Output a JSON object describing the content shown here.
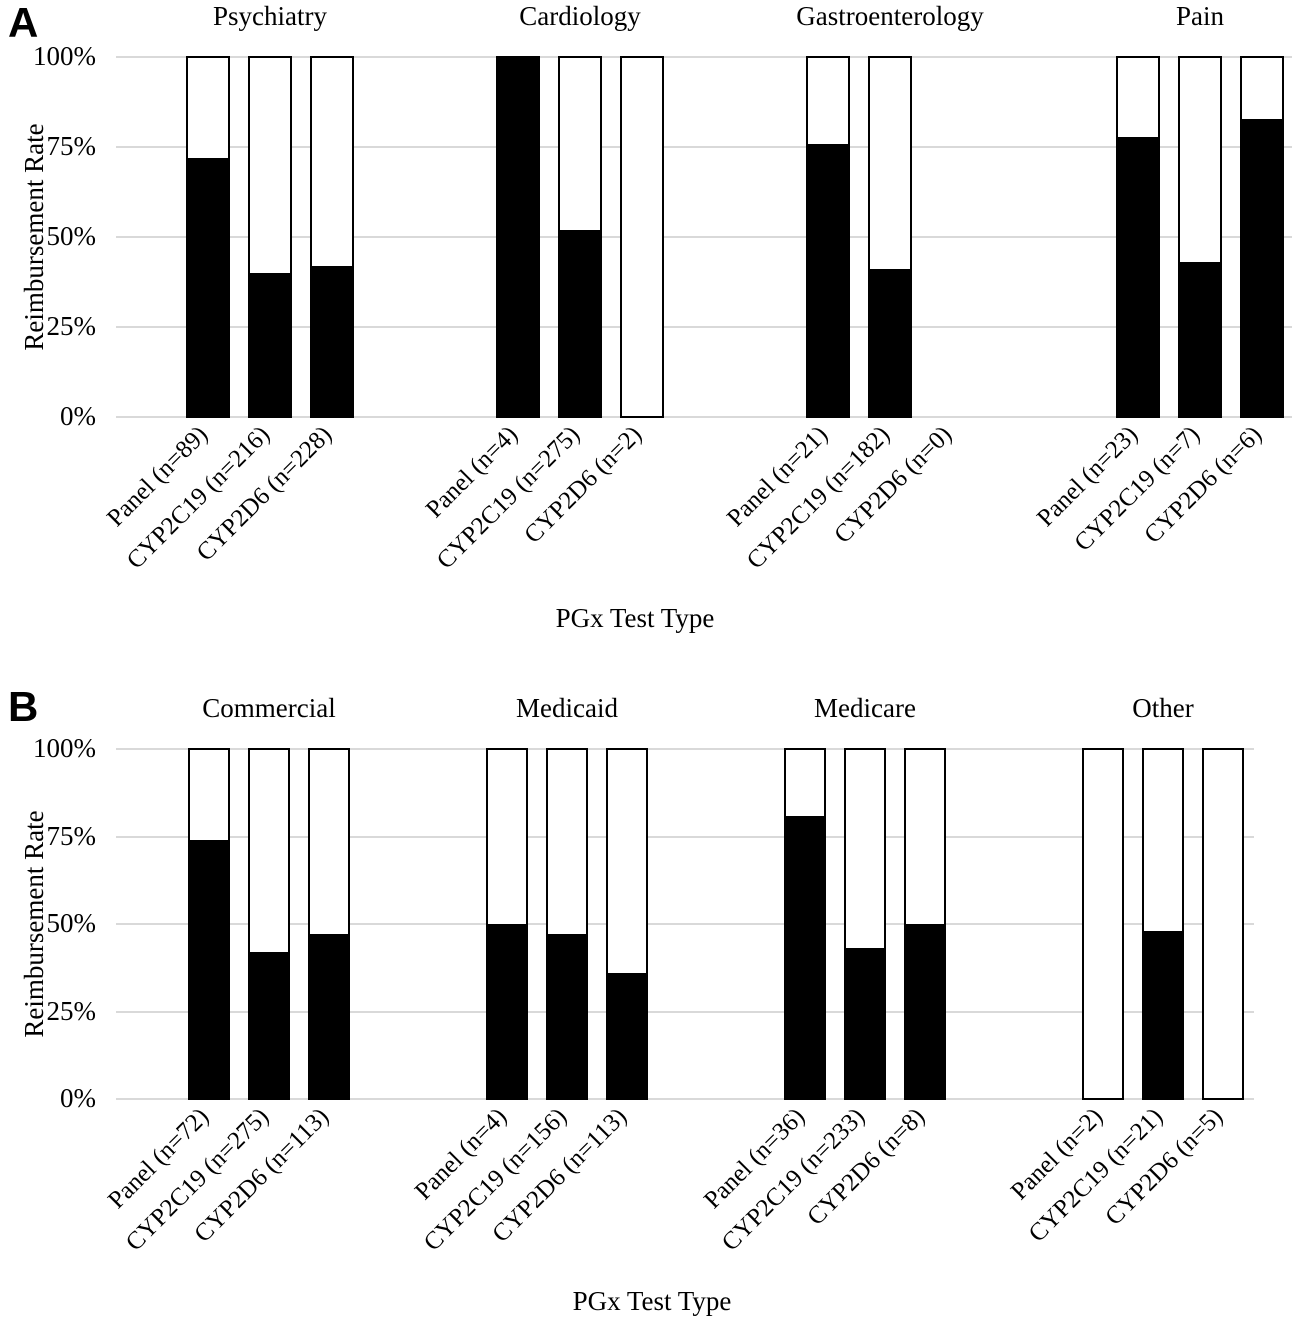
{
  "colors": {
    "bar_fill": "#000000",
    "bar_outline": "#000000",
    "gridline": "#d9d9d9",
    "text": "#000000",
    "background": "#ffffff"
  },
  "chart_data": [
    {
      "id": "A",
      "panel_letter": "A",
      "type": "bar",
      "subtype": "100pct-stacked",
      "title": "",
      "ylabel": "Reimbursement Rate",
      "xlabel": "PGx Test Type",
      "ylim": [
        0,
        100
      ],
      "yticks": [
        "100%",
        "75%",
        "50%",
        "25%",
        "0%"
      ],
      "ytick_values": [
        100,
        75,
        50,
        25,
        0
      ],
      "grid": true,
      "groups": [
        {
          "title": "Psychiatry",
          "bars": [
            {
              "label": "Panel (n=89)",
              "reimbursed_pct": 72
            },
            {
              "label": "CYP2C19 (n=216)",
              "reimbursed_pct": 40
            },
            {
              "label": "CYP2D6 (n=228)",
              "reimbursed_pct": 42
            }
          ]
        },
        {
          "title": "Cardiology",
          "bars": [
            {
              "label": "Panel (n=4)",
              "reimbursed_pct": 100
            },
            {
              "label": "CYP2C19 (n=275)",
              "reimbursed_pct": 52
            },
            {
              "label": "CYP2D6 (n=2)",
              "reimbursed_pct": 0
            }
          ]
        },
        {
          "title": "Gastroenterology",
          "bars": [
            {
              "label": "Panel (n=21)",
              "reimbursed_pct": 76
            },
            {
              "label": "CYP2C19 (n=182)",
              "reimbursed_pct": 41
            },
            {
              "label": "CYP2D6 (n=0)",
              "reimbursed_pct": null
            }
          ]
        },
        {
          "title": "Pain",
          "bars": [
            {
              "label": "Panel (n=23)",
              "reimbursed_pct": 78
            },
            {
              "label": "CYP2C19 (n=7)",
              "reimbursed_pct": 43
            },
            {
              "label": "CYP2D6 (n=6)",
              "reimbursed_pct": 83
            }
          ]
        }
      ]
    },
    {
      "id": "B",
      "panel_letter": "B",
      "type": "bar",
      "subtype": "100pct-stacked",
      "title": "",
      "ylabel": "Reimbursement Rate",
      "xlabel": "PGx Test Type",
      "ylim": [
        0,
        100
      ],
      "yticks": [
        "100%",
        "75%",
        "50%",
        "25%",
        "0%"
      ],
      "ytick_values": [
        100,
        75,
        50,
        25,
        0
      ],
      "grid": true,
      "groups": [
        {
          "title": "Commercial",
          "bars": [
            {
              "label": "Panel (n=72)",
              "reimbursed_pct": 74
            },
            {
              "label": "CYP2C19 (n=275)",
              "reimbursed_pct": 42
            },
            {
              "label": "CYP2D6 (n=113)",
              "reimbursed_pct": 47
            }
          ]
        },
        {
          "title": "Medicaid",
          "bars": [
            {
              "label": "Panel (n=4)",
              "reimbursed_pct": 50
            },
            {
              "label": "CYP2C19 (n=156)",
              "reimbursed_pct": 47
            },
            {
              "label": "CYP2D6 (n=113)",
              "reimbursed_pct": 36
            }
          ]
        },
        {
          "title": "Medicare",
          "bars": [
            {
              "label": "Panel (n=36)",
              "reimbursed_pct": 81
            },
            {
              "label": "CYP2C19 (n=233)",
              "reimbursed_pct": 43
            },
            {
              "label": "CYP2D6 (n=8)",
              "reimbursed_pct": 50
            }
          ]
        },
        {
          "title": "Other",
          "bars": [
            {
              "label": "Panel (n=2)",
              "reimbursed_pct": 0
            },
            {
              "label": "CYP2C19 (n=21)",
              "reimbursed_pct": 48
            },
            {
              "label": "CYP2D6 (n=5)",
              "reimbursed_pct": 0
            }
          ]
        }
      ]
    }
  ]
}
